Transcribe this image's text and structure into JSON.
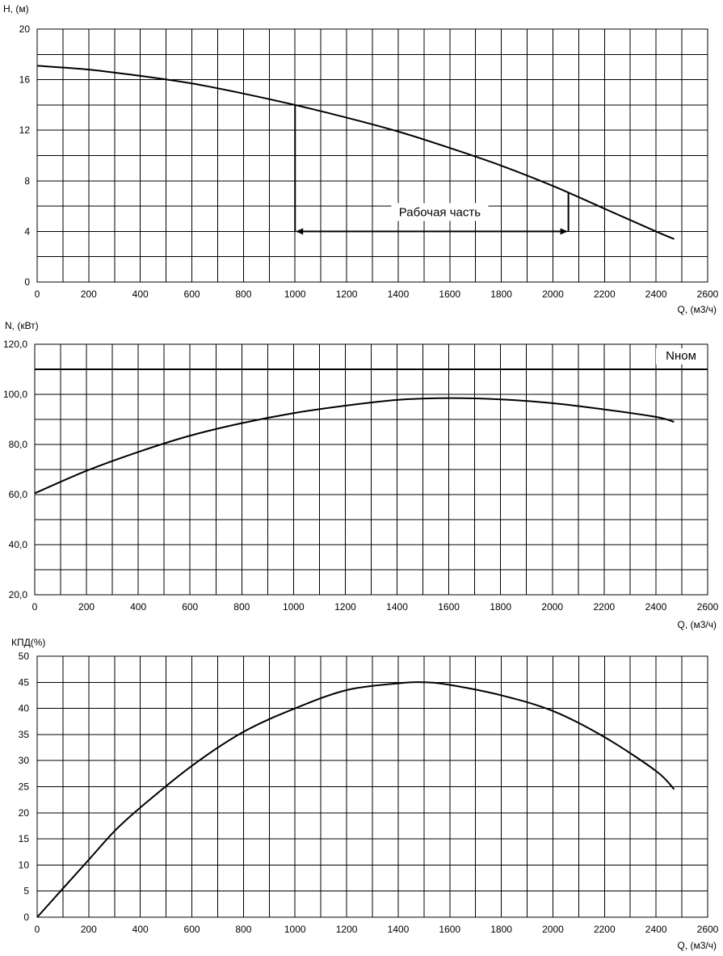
{
  "chart_data": [
    {
      "type": "line",
      "ylabel": "H, (м)",
      "xlabel": "Q, (м3/ч)",
      "xlim": [
        0,
        2600
      ],
      "ylim": [
        0,
        20
      ],
      "grid": true,
      "x_ticks": [
        "0",
        "200",
        "400",
        "600",
        "800",
        "1000",
        "1200",
        "1400",
        "1600",
        "1800",
        "2000",
        "2200",
        "2400",
        "2600"
      ],
      "y_ticks": [
        "0",
        "4",
        "8",
        "12",
        "16",
        "20"
      ],
      "series": [
        {
          "x": [
            0,
            200,
            400,
            600,
            800,
            1000,
            1200,
            1400,
            1600,
            1800,
            2000,
            2200,
            2400,
            2470
          ],
          "values": [
            17.1,
            16.8,
            16.3,
            15.7,
            14.9,
            14.0,
            13.0,
            11.9,
            10.6,
            9.2,
            7.6,
            5.8,
            4.0,
            3.4
          ]
        }
      ],
      "annotations": [
        {
          "text": "Рабочая часть",
          "x_range": [
            1000,
            2060
          ],
          "y": 4
        }
      ]
    },
    {
      "type": "line",
      "ylabel": "N, (кВт)",
      "xlabel": "Q, (м3/ч)",
      "xlim": [
        0,
        2600
      ],
      "ylim": [
        20,
        120
      ],
      "grid": true,
      "x_ticks": [
        "0",
        "200",
        "400",
        "600",
        "800",
        "1000",
        "1200",
        "1400",
        "1600",
        "1800",
        "2000",
        "2200",
        "2400",
        "2600"
      ],
      "y_ticks": [
        "20,0",
        "40,0",
        "60,0",
        "80,0",
        "100,0",
        "120,0"
      ],
      "reference_line": {
        "label": "Nном",
        "y": 110
      },
      "series": [
        {
          "x": [
            0,
            200,
            400,
            600,
            800,
            1000,
            1200,
            1400,
            1600,
            1800,
            2000,
            2200,
            2400,
            2470
          ],
          "values": [
            60.5,
            69.5,
            77.0,
            83.5,
            88.5,
            92.5,
            95.5,
            97.8,
            98.5,
            98.0,
            96.5,
            94.0,
            91.0,
            89.0
          ]
        }
      ]
    },
    {
      "type": "line",
      "ylabel": "КПД(%)",
      "xlabel": "Q, (м3/ч)",
      "xlim": [
        0,
        2600
      ],
      "ylim": [
        0,
        50
      ],
      "grid": true,
      "x_ticks": [
        "0",
        "200",
        "400",
        "600",
        "800",
        "1000",
        "1200",
        "1400",
        "1600",
        "1800",
        "2000",
        "2200",
        "2400",
        "2600"
      ],
      "y_ticks": [
        "0",
        "5",
        "10",
        "15",
        "20",
        "25",
        "30",
        "35",
        "40",
        "45",
        "50"
      ],
      "series": [
        {
          "x": [
            0,
            100,
            200,
            300,
            400,
            600,
            800,
            1000,
            1200,
            1400,
            1500,
            1600,
            1800,
            2000,
            2200,
            2400,
            2470
          ],
          "values": [
            0,
            5.5,
            11,
            16.5,
            21,
            29,
            35.5,
            40,
            43.5,
            44.8,
            45,
            44.5,
            42.5,
            39.5,
            34.5,
            28,
            24.5
          ]
        }
      ]
    }
  ]
}
